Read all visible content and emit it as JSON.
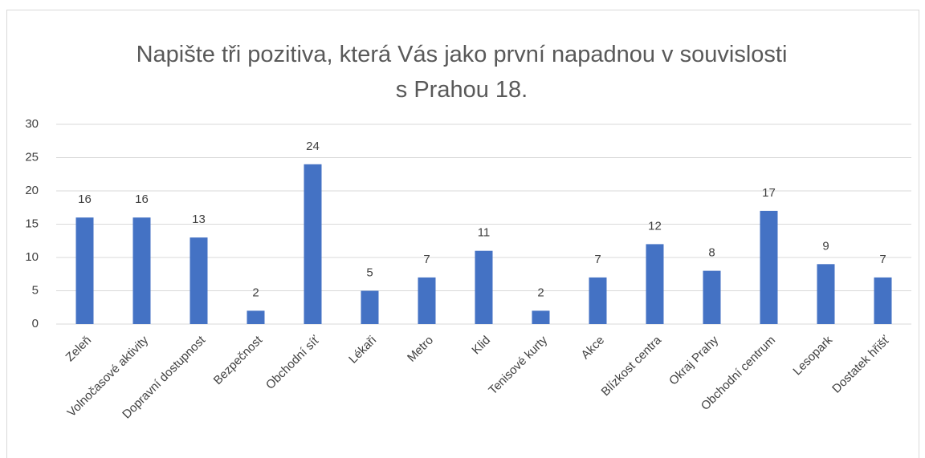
{
  "chart_data": {
    "type": "bar",
    "title": "Napište tři pozitiva, která Vás jako první napadnou v souvislosti s Prahou 18.",
    "categories": [
      "Zeleň",
      "Volnočasové aktivity",
      "Dopravní dostupnost",
      "Bezpečnost",
      "Obchodní síť",
      "Lékaři",
      "Metro",
      "Klid",
      "Tenisové kurty",
      "Akce",
      "Blízkost centra",
      "Okraj Prahy",
      "Obchodní centrum",
      "Lesopark",
      "Dostatek hřišť"
    ],
    "values": [
      16,
      16,
      13,
      2,
      24,
      5,
      7,
      11,
      2,
      7,
      12,
      8,
      17,
      9,
      7
    ],
    "color": "#4472c4",
    "ylim": [
      0,
      30
    ],
    "yticks": [
      0,
      5,
      10,
      15,
      20,
      25,
      30
    ],
    "grid": true
  }
}
